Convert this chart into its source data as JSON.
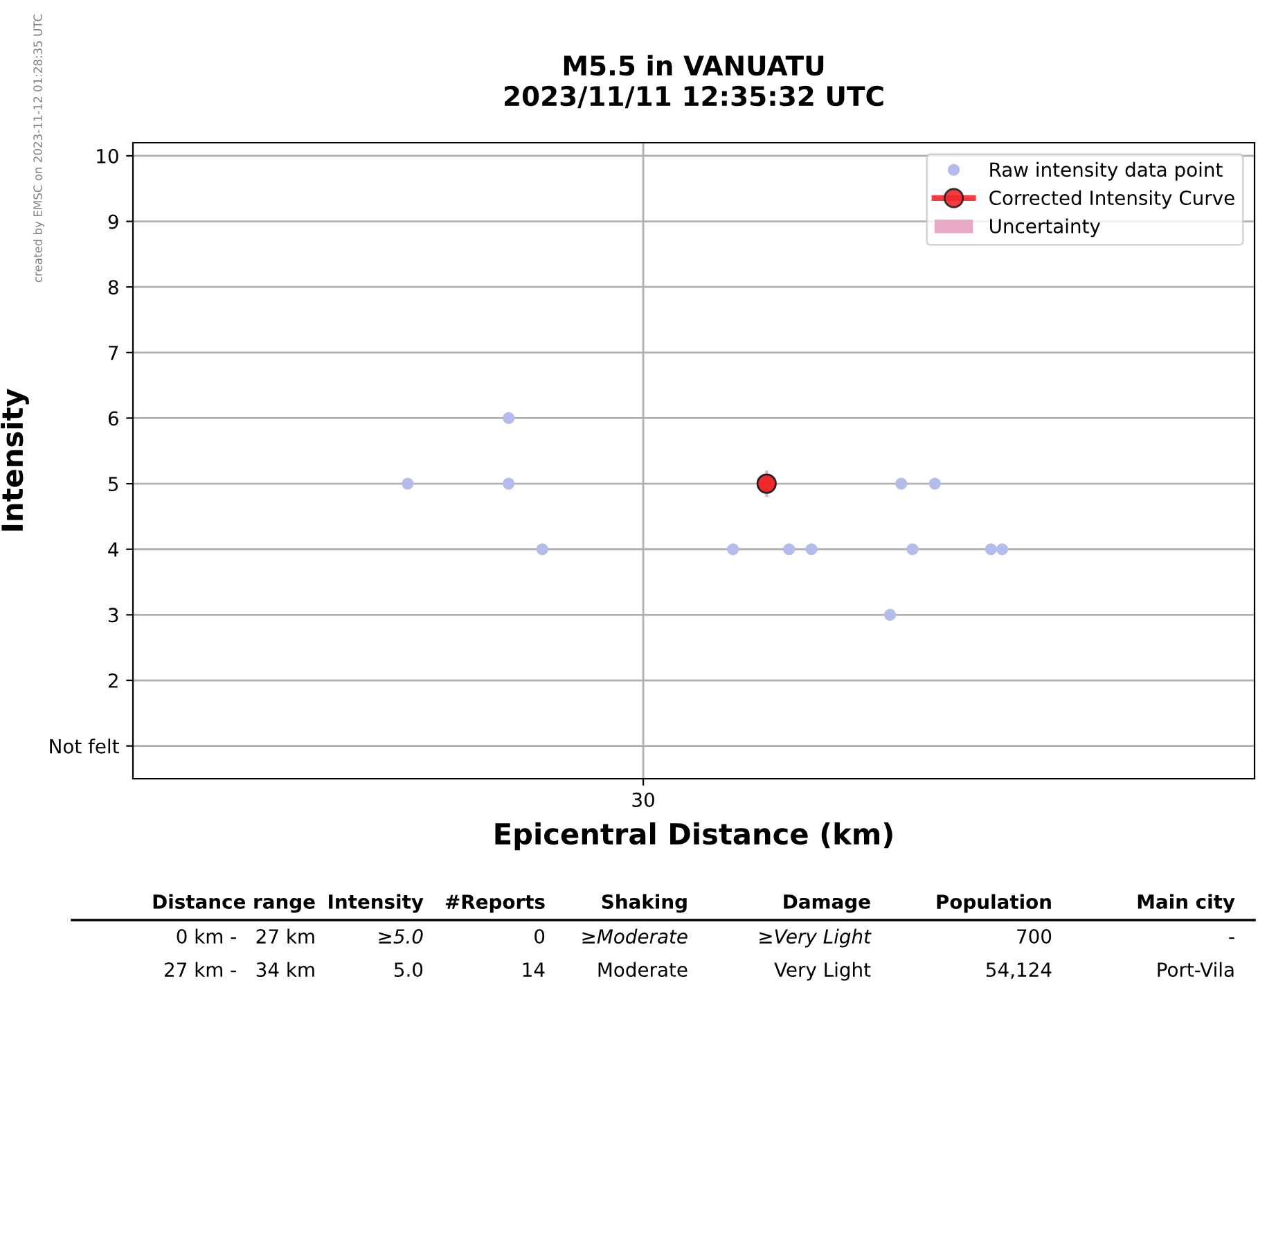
{
  "chart_data": {
    "type": "scatter",
    "title": "M5.5 in VANUATU",
    "subtitle": "2023/11/11 12:35:32 UTC",
    "xlabel": "Epicentral Distance (km)",
    "ylabel": "Intensity",
    "categories": [
      null,
      null,
      null,
      null,
      null,
      null,
      null,
      null,
      null,
      null,
      null,
      null,
      null,
      null,
      null,
      null,
      null,
      null,
      null,
      null,
      null,
      null,
      null,
      null,
      null,
      null,
      null,
      null,
      null,
      null,
      null,
      null,
      null,
      null,
      null,
      null,
      null,
      null,
      null,
      null,
      null,
      null,
      null,
      null,
      null,
      "30",
      null,
      null,
      null,
      null,
      null,
      null,
      null,
      null,
      null,
      null,
      null,
      null,
      null,
      null,
      null,
      null,
      null,
      null,
      null,
      null,
      null,
      null,
      null,
      null,
      null,
      null,
      null,
      null,
      null,
      null,
      null,
      null,
      null,
      null,
      null,
      null,
      null,
      null,
      null,
      null,
      null,
      null,
      null,
      null,
      null,
      null,
      null,
      null,
      null,
      null,
      null,
      null,
      null,
      null
    ],
    "ylim": [
      0.5,
      10.2
    ],
    "yticks": [
      {
        "value": 1,
        "label": "Not felt"
      },
      2,
      3,
      4,
      5,
      6,
      7,
      8,
      9,
      10
    ],
    "grid": true,
    "legend": "top right",
    "marker": "circle",
    "line_style": "solid",
    "series": [
      {
        "name": "Raw intensity data point",
        "color": "#b3bcea",
        "values": [
          null,
          null,
          null,
          null,
          null,
          null,
          null,
          null,
          null,
          null,
          null,
          null,
          null,
          null,
          null,
          null,
          null,
          null,
          null,
          null,
          null,
          null,
          null,
          null,
          5,
          null,
          null,
          null,
          null,
          null,
          null,
          null,
          null,
          5,
          null,
          null,
          4,
          null,
          null,
          null,
          null,
          null,
          null,
          null,
          null,
          null,
          null,
          null,
          null,
          null,
          null,
          null,
          null,
          4,
          null,
          null,
          null,
          null,
          4,
          null,
          4,
          null,
          null,
          null,
          null,
          null,
          null,
          3,
          5,
          4,
          null,
          5,
          null,
          null,
          null,
          null,
          4,
          4,
          null,
          null,
          null,
          null,
          null,
          null,
          null,
          null,
          null,
          null,
          null,
          null,
          null,
          null,
          null,
          null,
          null,
          null,
          null,
          null,
          null,
          null
        ]
      },
      {
        "color": "#b3bcea",
        "values": [
          null,
          null,
          null,
          null,
          null,
          null,
          null,
          null,
          null,
          null,
          null,
          null,
          null,
          null,
          null,
          null,
          null,
          null,
          null,
          null,
          null,
          null,
          null,
          null,
          null,
          null,
          null,
          null,
          null,
          null,
          null,
          null,
          null,
          6,
          null,
          null,
          null,
          null,
          null,
          null,
          null,
          null,
          null,
          null,
          null,
          null,
          null,
          null,
          null,
          null,
          null,
          null,
          null,
          null,
          null,
          null,
          null,
          null,
          null,
          null,
          null,
          null,
          null,
          null,
          null,
          null,
          null,
          null,
          null,
          null,
          null,
          null,
          null,
          null,
          null,
          null,
          null,
          null,
          null,
          null,
          null,
          null,
          null,
          null,
          null,
          null,
          null,
          null,
          null,
          null,
          null,
          null,
          null,
          null,
          null,
          null,
          null,
          null,
          null,
          null
        ]
      },
      {
        "name": "Corrected Intensity Curve",
        "type": "line",
        "color": "#f0282d",
        "values": [
          null,
          null,
          null,
          null,
          null,
          null,
          null,
          null,
          null,
          null,
          null,
          null,
          null,
          null,
          null,
          null,
          null,
          null,
          null,
          null,
          null,
          null,
          null,
          null,
          null,
          null,
          null,
          null,
          null,
          null,
          null,
          null,
          null,
          null,
          null,
          null,
          null,
          null,
          null,
          null,
          null,
          null,
          null,
          null,
          null,
          null,
          null,
          null,
          null,
          null,
          null,
          null,
          null,
          null,
          null,
          null,
          5,
          null,
          null,
          null,
          null,
          null,
          null,
          null,
          null,
          null,
          null,
          null,
          null,
          null,
          null,
          null,
          null,
          null,
          null,
          null,
          null,
          null,
          null,
          null,
          null,
          null,
          null,
          null,
          null,
          null,
          null,
          null,
          null,
          null,
          null,
          null,
          null,
          null,
          null,
          null,
          null,
          null,
          null,
          null
        ]
      },
      {
        "name": "Uncertainty",
        "type": "bar",
        "color": "#e8a8c8",
        "values": [
          null,
          null,
          null,
          null,
          null,
          null,
          null,
          null,
          null,
          null,
          null,
          null,
          null,
          null,
          null,
          null,
          null,
          null,
          null,
          null,
          null,
          null,
          null,
          null,
          null,
          null,
          null,
          null,
          null,
          null,
          null,
          null,
          null,
          null,
          null,
          null,
          null,
          null,
          null,
          null,
          null,
          null,
          null,
          null,
          null,
          null,
          null,
          null,
          null,
          null,
          null,
          null,
          null,
          null,
          null,
          null,
          0.4,
          null,
          null,
          null,
          null,
          null,
          null,
          null,
          null,
          null,
          null,
          null,
          null,
          null,
          null,
          null,
          null,
          null,
          null,
          null,
          null,
          null,
          null,
          null,
          null,
          null,
          null,
          null,
          null,
          null,
          null,
          null,
          null,
          null,
          null,
          null,
          null,
          null,
          null,
          null,
          null,
          null,
          null,
          null
        ],
        "base": [
          null,
          null,
          null,
          null,
          null,
          null,
          null,
          null,
          null,
          null,
          null,
          null,
          null,
          null,
          null,
          null,
          null,
          null,
          null,
          null,
          null,
          null,
          null,
          null,
          null,
          null,
          null,
          null,
          null,
          null,
          null,
          null,
          null,
          null,
          null,
          null,
          null,
          null,
          null,
          null,
          null,
          null,
          null,
          null,
          null,
          null,
          null,
          null,
          null,
          null,
          null,
          null,
          null,
          null,
          null,
          null,
          4.8,
          null,
          null,
          null,
          null,
          null,
          null,
          null,
          null,
          null,
          null,
          null,
          null,
          null,
          null,
          null,
          null,
          null,
          null,
          null,
          null,
          null,
          null,
          null,
          null,
          null,
          null,
          null,
          null,
          null,
          null,
          null,
          null,
          null,
          null,
          null,
          null,
          null,
          null,
          null,
          null,
          null,
          null,
          null
        ]
      }
    ],
    "annotations": [
      "created by EMSC on 2023-11-12 01:28:35 UTC",
      "Distance range",
      "Intensity",
      "#Reports",
      "Shaking",
      "Damage",
      "Population",
      "Main city",
      "0 km -   27 km",
      "≥5.0",
      "0",
      "≥Moderate",
      "≥Very Light",
      "700",
      "-",
      "27 km -   34 km",
      "5.0",
      "14",
      "Moderate",
      "Very Light",
      "54,124",
      "Port-Vila"
    ]
  }
}
